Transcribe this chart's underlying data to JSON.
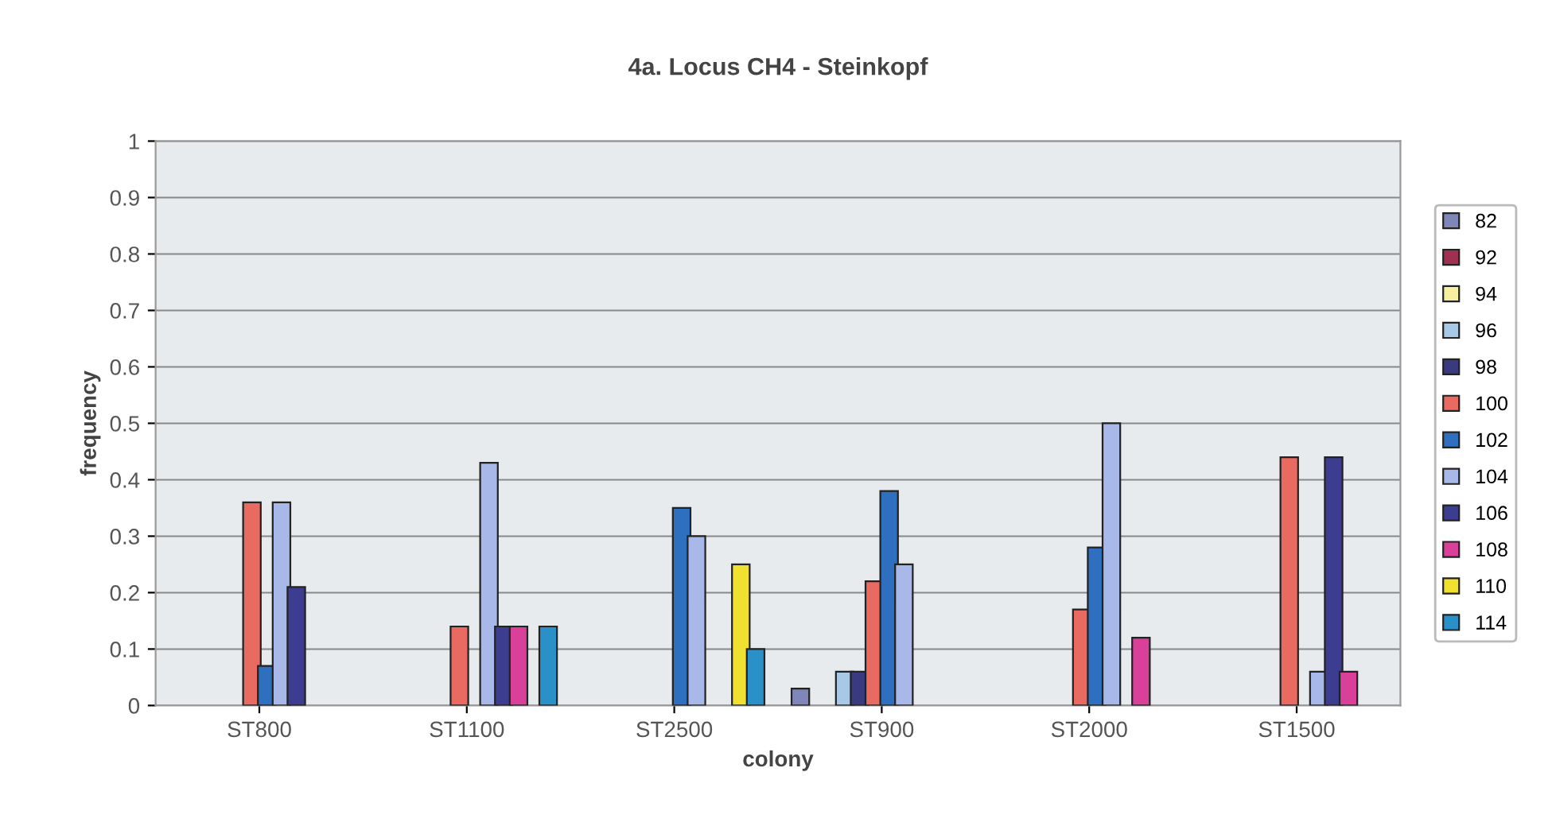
{
  "chart_data": {
    "type": "bar",
    "title": "4a. Locus CH4 - Steinkopf",
    "xlabel": "colony",
    "ylabel": "frequency",
    "categories": [
      "ST800",
      "ST1100",
      "ST2500",
      "ST900",
      "ST2000",
      "ST1500"
    ],
    "series": [
      {
        "name": "82",
        "color": "#7f86b8",
        "values": [
          null,
          null,
          null,
          0.03,
          null,
          null
        ]
      },
      {
        "name": "92",
        "color": "#a03050",
        "values": [
          null,
          null,
          null,
          null,
          null,
          null
        ]
      },
      {
        "name": "94",
        "color": "#f5f0a0",
        "values": [
          null,
          null,
          null,
          null,
          null,
          null
        ]
      },
      {
        "name": "96",
        "color": "#a8c8e8",
        "values": [
          null,
          null,
          null,
          0.06,
          null,
          null
        ]
      },
      {
        "name": "98",
        "color": "#3a3a80",
        "values": [
          null,
          null,
          null,
          0.06,
          null,
          null
        ]
      },
      {
        "name": "100",
        "color": "#e86a60",
        "values": [
          0.36,
          0.14,
          null,
          0.22,
          0.17,
          0.44
        ]
      },
      {
        "name": "102",
        "color": "#2e6fc0",
        "values": [
          0.07,
          null,
          0.35,
          0.38,
          0.28,
          null
        ]
      },
      {
        "name": "104",
        "color": "#a8b8e8",
        "values": [
          0.36,
          0.43,
          0.3,
          0.25,
          0.5,
          0.06
        ]
      },
      {
        "name": "106",
        "color": "#3c3c90",
        "values": [
          0.21,
          0.14,
          null,
          null,
          null,
          0.44
        ]
      },
      {
        "name": "108",
        "color": "#d8409a",
        "values": [
          null,
          0.14,
          null,
          null,
          0.12,
          0.06
        ]
      },
      {
        "name": "110",
        "color": "#f0e030",
        "values": [
          null,
          null,
          0.25,
          null,
          null,
          null
        ]
      },
      {
        "name": "114",
        "color": "#2a90c8",
        "values": [
          null,
          0.14,
          0.1,
          null,
          null,
          null
        ]
      }
    ],
    "ylim": [
      0,
      1
    ],
    "yticks": [
      0,
      0.1,
      0.2,
      0.3,
      0.4,
      0.5,
      0.6,
      0.7,
      0.8,
      0.9,
      1
    ],
    "grid": "y",
    "legend": "right"
  }
}
